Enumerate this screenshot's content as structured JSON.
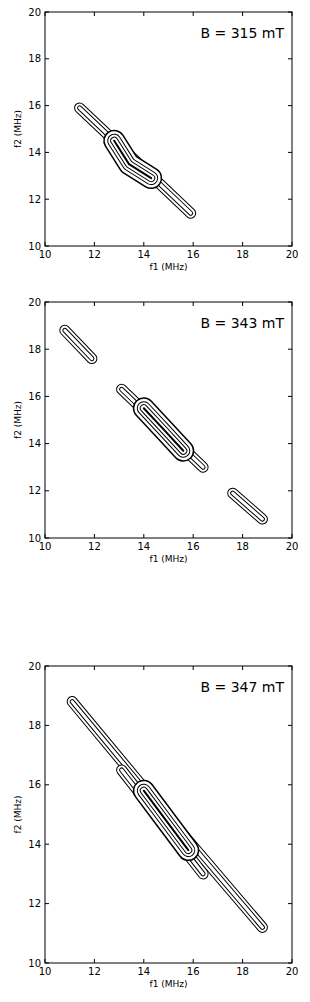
{
  "chart_data": [
    {
      "type": "contour",
      "title": "B = 315 mT",
      "x_label": "f1 (MHz)",
      "y_label": "f2 (MHz)",
      "xlim": [
        10,
        20
      ],
      "ylim": [
        10,
        20
      ],
      "xticks": [
        10,
        12,
        14,
        16,
        18,
        20
      ],
      "yticks": [
        10,
        12,
        14,
        16,
        18,
        20
      ],
      "grid": false,
      "color": "#000000",
      "series": [
        {
          "x": [
            11.4,
            13.65,
            15.9
          ],
          "values": [
            15.9,
            13.65,
            11.4
          ],
          "line_style": "solid"
        },
        {
          "x": [
            12.8,
            13.4,
            14.3
          ],
          "values": [
            14.5,
            13.5,
            12.9
          ],
          "line_style": "dense"
        }
      ]
    },
    {
      "type": "contour",
      "title": "B = 343 mT",
      "x_label": "f1 (MHz)",
      "y_label": "f2 (MHz)",
      "xlim": [
        10,
        20
      ],
      "ylim": [
        10,
        20
      ],
      "xticks": [
        10,
        12,
        14,
        16,
        18,
        20
      ],
      "yticks": [
        10,
        12,
        14,
        16,
        18,
        20
      ],
      "grid": false,
      "color": "#000000",
      "series": [
        {
          "x": [
            10.8,
            11.9
          ],
          "values": [
            18.8,
            17.6
          ],
          "line_style": "solid"
        },
        {
          "x": [
            13.1,
            14.75,
            16.4
          ],
          "values": [
            16.3,
            14.65,
            13.0
          ],
          "line_style": "solid"
        },
        {
          "x": [
            14.0,
            14.8,
            15.6
          ],
          "values": [
            15.5,
            14.6,
            13.7
          ],
          "line_style": "dense"
        },
        {
          "x": [
            17.6,
            18.8
          ],
          "values": [
            11.9,
            10.8
          ],
          "line_style": "solid"
        }
      ]
    },
    {
      "type": "contour",
      "title": "B = 347 mT",
      "x_label": "f1 (MHz)",
      "y_label": "f2 (MHz)",
      "xlim": [
        10,
        20
      ],
      "ylim": [
        10,
        20
      ],
      "xticks": [
        10,
        12,
        14,
        16,
        18,
        20
      ],
      "yticks": [
        10,
        12,
        14,
        16,
        18,
        20
      ],
      "grid": false,
      "color": "#000000",
      "series": [
        {
          "x": [
            11.1,
            14.95,
            18.8
          ],
          "values": [
            18.8,
            14.95,
            11.2
          ],
          "line_style": "solid"
        },
        {
          "x": [
            13.1,
            14.75,
            16.4
          ],
          "values": [
            16.5,
            14.75,
            13.0
          ],
          "line_style": "solid"
        },
        {
          "x": [
            14.0,
            14.9,
            15.8
          ],
          "values": [
            15.8,
            14.8,
            13.8
          ],
          "line_style": "dense"
        }
      ]
    }
  ]
}
